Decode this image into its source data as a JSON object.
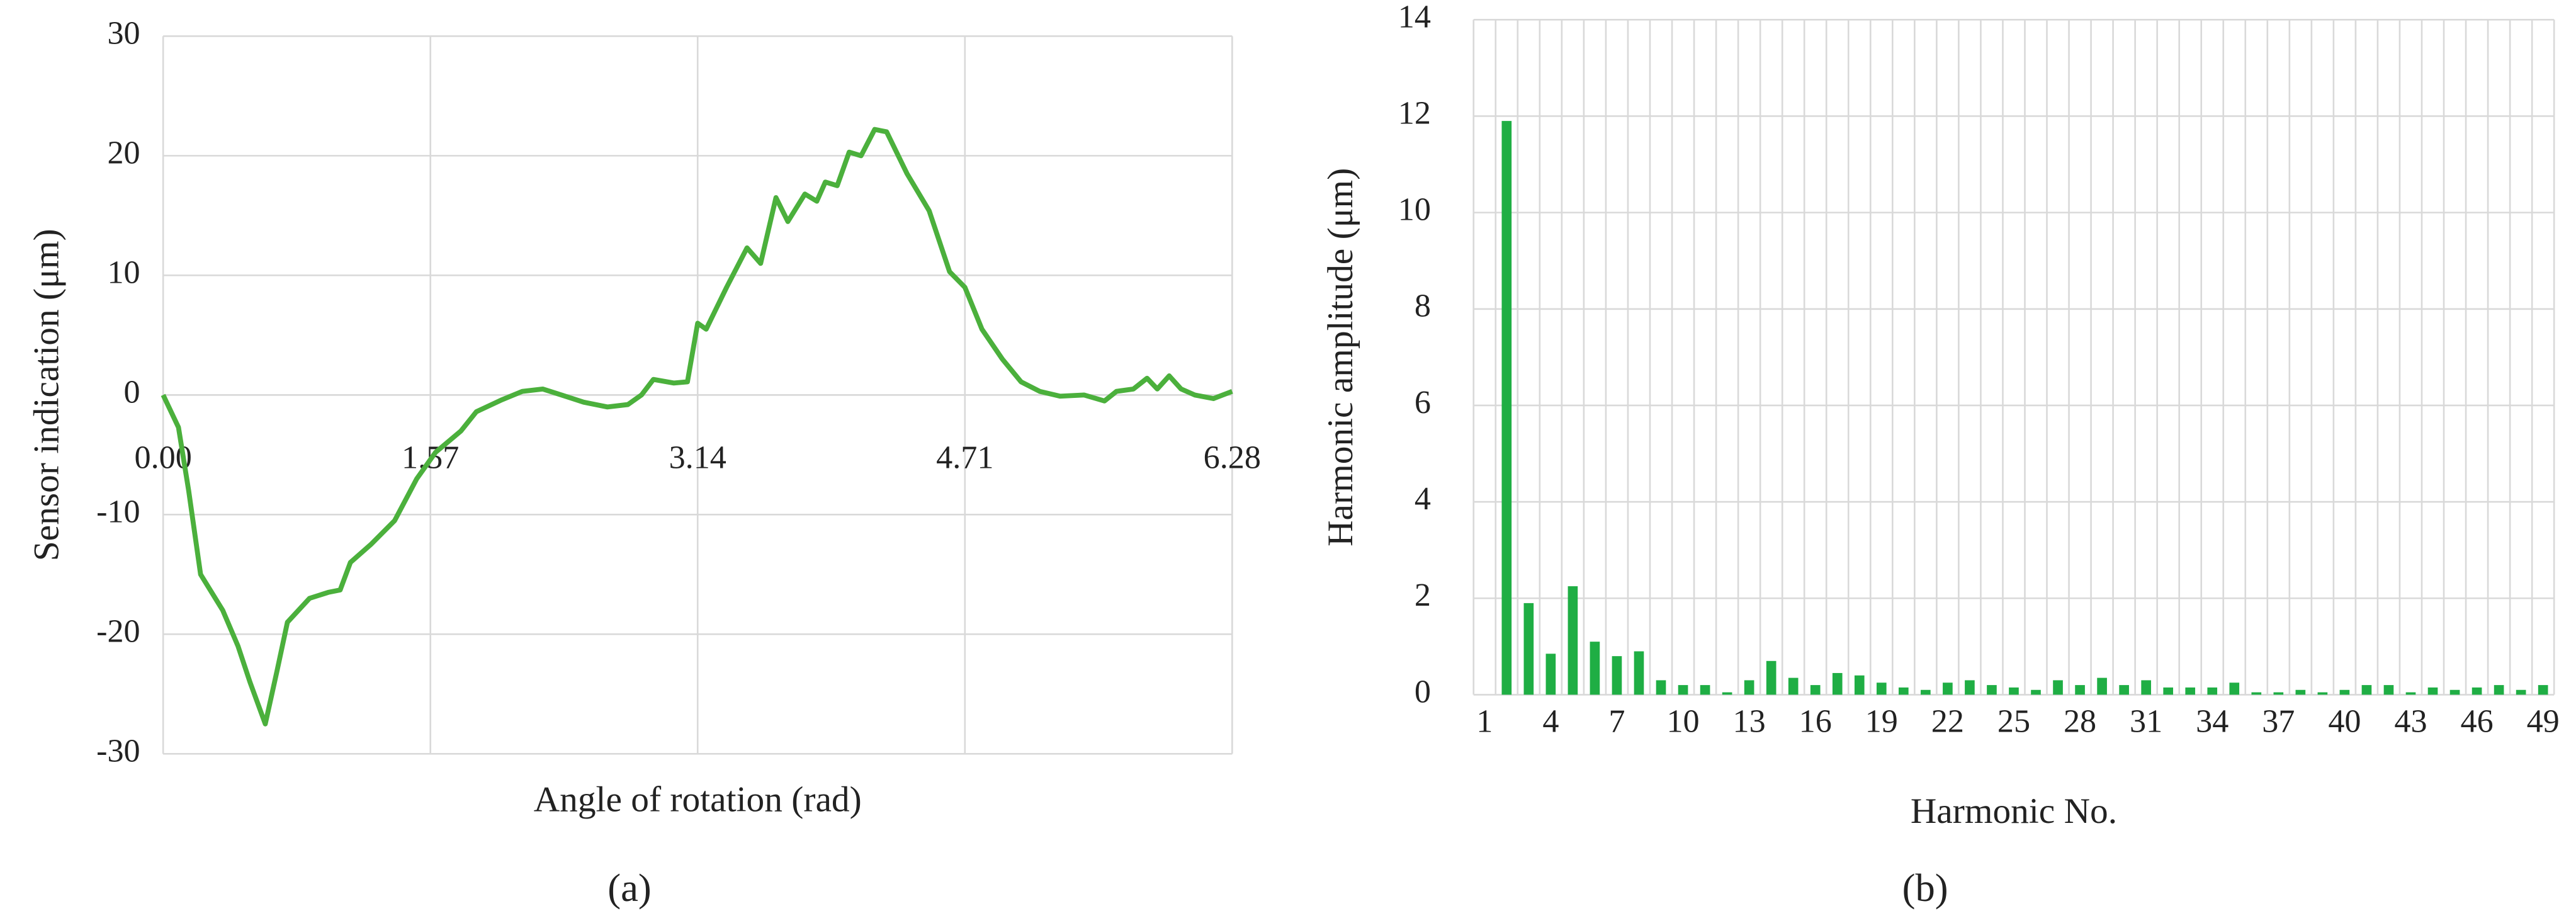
{
  "chart_data": [
    {
      "type": "line",
      "ylabel": "Sensor indication (μm)",
      "xlabel": "Angle of rotation (rad)",
      "caption": "(a)",
      "x": [
        0,
        0.09,
        0.15,
        0.22,
        0.35,
        0.44,
        0.51,
        0.6,
        0.67,
        0.73,
        0.86,
        0.97,
        1.04,
        1.1,
        1.22,
        1.36,
        1.49,
        1.6,
        1.75,
        1.84,
        1.99,
        2.11,
        2.23,
        2.34,
        2.47,
        2.61,
        2.73,
        2.81,
        2.88,
        3.0,
        3.08,
        3.14,
        3.19,
        3.31,
        3.43,
        3.51,
        3.6,
        3.67,
        3.77,
        3.84,
        3.89,
        3.96,
        4.03,
        4.1,
        4.18,
        4.25,
        4.37,
        4.5,
        4.62,
        4.71,
        4.81,
        4.93,
        5.04,
        5.15,
        5.27,
        5.41,
        5.53,
        5.6,
        5.7,
        5.78,
        5.84,
        5.91,
        5.98,
        6.06,
        6.17,
        6.28
      ],
      "values": [
        0,
        -2.7,
        -8,
        -15,
        -18,
        -21,
        -24,
        -27.5,
        -23,
        -19,
        -17,
        -16.5,
        -16.3,
        -14,
        -12.5,
        -10.5,
        -7,
        -4.8,
        -3,
        -1.4,
        -0.4,
        0.3,
        0.5,
        0,
        -0.6,
        -1,
        -0.8,
        0,
        1.3,
        1,
        1.1,
        6,
        5.5,
        9,
        12.3,
        11,
        16.5,
        14.5,
        16.8,
        16.2,
        17.8,
        17.5,
        20.3,
        20,
        22.2,
        22,
        18.5,
        15.4,
        10.3,
        9,
        5.5,
        3,
        1.1,
        0.3,
        -0.1,
        0,
        -0.5,
        0.3,
        0.5,
        1.4,
        0.5,
        1.6,
        0.5,
        0,
        -0.3,
        0.3
      ],
      "xlim": [
        0,
        6.28
      ],
      "xticks": [
        {
          "value": 0,
          "label": "0.00"
        },
        1.57,
        3.14,
        4.71,
        6.28
      ],
      "ylim": [
        -30,
        30
      ],
      "yticks": [
        30,
        20,
        10,
        0,
        -10,
        -20,
        -30
      ],
      "color": "#4bb03c",
      "grid": true
    },
    {
      "type": "bar",
      "ylabel": "Harmonic amplitude (μm)",
      "xlabel": "Harmonic No.",
      "caption": "(b)",
      "categories": [
        "1",
        null,
        null,
        "4",
        null,
        null,
        "7",
        null,
        null,
        "10",
        null,
        null,
        "13",
        null,
        null,
        "16",
        null,
        null,
        "19",
        null,
        null,
        "22",
        null,
        null,
        "25",
        null,
        null,
        "28",
        null,
        null,
        "31",
        null,
        null,
        "34",
        null,
        null,
        "37",
        null,
        null,
        "40",
        null,
        null,
        "43",
        null,
        null,
        "46",
        null,
        null,
        "49"
      ],
      "values": [
        0,
        11.9,
        1.9,
        0.85,
        2.25,
        1.1,
        0.8,
        0.9,
        0.3,
        0.2,
        0.2,
        0.05,
        0.3,
        0.7,
        0.35,
        0.2,
        0.45,
        0.4,
        0.25,
        0.15,
        0.1,
        0.25,
        0.3,
        0.2,
        0.15,
        0.1,
        0.3,
        0.2,
        0.35,
        0.2,
        0.3,
        0.15,
        0.15,
        0.15,
        0.25,
        0.05,
        0.05,
        0.1,
        0.05,
        0.1,
        0.2,
        0.2,
        0.05,
        0.15,
        0.1,
        0.15,
        0.2,
        0.1,
        0.2
      ],
      "ylim": [
        0,
        14
      ],
      "yticks": [
        0,
        2,
        4,
        6,
        8,
        10,
        12,
        14
      ],
      "color": "#1fae44",
      "grid": true
    }
  ]
}
